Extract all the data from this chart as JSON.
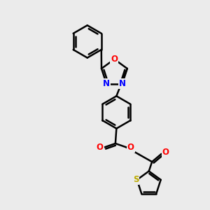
{
  "background_color": "#ebebeb",
  "bond_color": "#000000",
  "bond_width": 1.8,
  "atom_colors": {
    "O": "#ff0000",
    "N": "#0000ff",
    "S": "#bbaa00",
    "C": "#000000"
  },
  "font_size_atoms": 8.5,
  "fig_width": 3.0,
  "fig_height": 3.0,
  "dpi": 100
}
